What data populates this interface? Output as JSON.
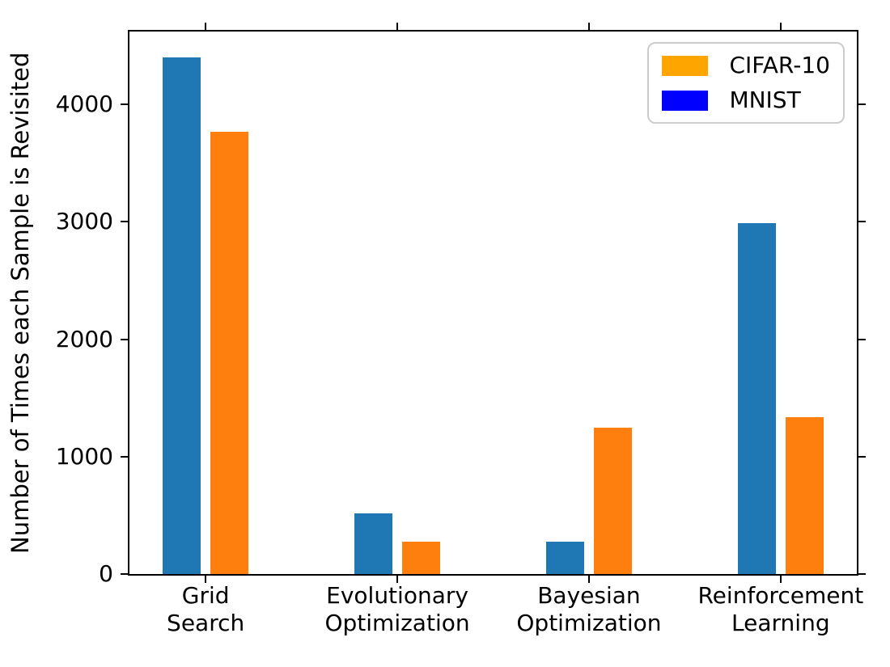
{
  "chart_data": {
    "type": "bar",
    "title": "",
    "xlabel": "",
    "ylabel": "Number of Times each Sample is Revisited",
    "categories": [
      "Grid\nSearch",
      "Evolutionary\nOptimization",
      "Bayesian\nOptimization",
      "Reinforcement\nLearning"
    ],
    "series": [
      {
        "name": "MNIST",
        "bar_color": "#1f77b4",
        "values": [
          4400,
          515,
          275,
          2985
        ]
      },
      {
        "name": "CIFAR-10",
        "bar_color": "#ff7f0e",
        "values": [
          3765,
          275,
          1245,
          1335
        ]
      }
    ],
    "yticks": [
      0,
      1000,
      2000,
      3000,
      4000
    ],
    "ylim": [
      0,
      4620
    ],
    "xlim": [
      -0.3975,
      3.3975
    ],
    "bar_width": 0.2,
    "bar_offsets": [
      -0.125,
      0.125
    ],
    "grid": false,
    "tick_sides": [
      "left",
      "right",
      "top",
      "bottom"
    ],
    "legend": {
      "position": "upper right",
      "entries": [
        {
          "label": "CIFAR-10",
          "color": "#ffa500"
        },
        {
          "label": "MNIST",
          "color": "#0000ff"
        }
      ]
    },
    "colors": {
      "spine": "#000000",
      "text": "#000000",
      "background": "#ffffff",
      "legend_border": "#cccccc"
    }
  }
}
